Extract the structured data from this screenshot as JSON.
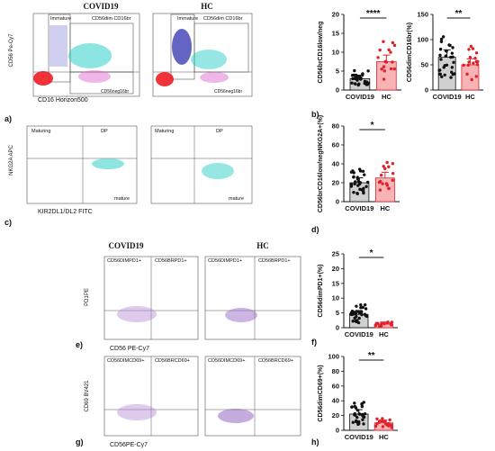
{
  "panel_a": {
    "letter": "a)",
    "col_titles": [
      "COVID19",
      "HC"
    ],
    "y_axis": "CD56 Pe-Cy7",
    "x_axis": "CD16 Horizon500",
    "gates": {
      "immature": "Immature",
      "dim": "CD56dim CD16br",
      "neg": "CD56neg16br"
    }
  },
  "panel_b": {
    "letter": "b)",
    "charts": [
      {
        "type": "bar",
        "ylabel": "CD56brCD16low/neg",
        "categories": [
          "COVID19",
          "HC"
        ],
        "values": [
          3,
          7.5
        ],
        "yticks": [
          0,
          5,
          10,
          15,
          20
        ],
        "ylim": [
          0,
          20
        ],
        "sig": "****"
      },
      {
        "type": "bar",
        "ylabel": "CD56dimCD16br(%)",
        "categories": [
          "COVID19",
          "HC"
        ],
        "values": [
          65,
          50
        ],
        "yticks": [
          0,
          50,
          100,
          150
        ],
        "ylim": [
          0,
          150
        ],
        "sig": "**"
      }
    ]
  },
  "panel_c": {
    "letter": "c)",
    "y_axis": "NKG2A APC",
    "x_axis": "KIR2DL1/DL2 FITC",
    "gates": {
      "maturing": "Maturing",
      "dp": "DP",
      "mature": "mature"
    }
  },
  "panel_d": {
    "letter": "d)",
    "chart": {
      "type": "bar",
      "ylabel": "CD56brCD16low/negNKG2A+(%)",
      "categories": [
        "COVID19",
        "HC"
      ],
      "values": [
        20,
        25
      ],
      "yticks": [
        0,
        20,
        40,
        60,
        80
      ],
      "ylim": [
        0,
        80
      ],
      "sig": "*"
    }
  },
  "panel_e": {
    "letter": "e)",
    "col_titles": [
      "COVID19",
      "HC"
    ],
    "y_axis": "PD1PE",
    "x_axis": "CD56 PE-Cy7",
    "gates": {
      "left": "CD56DIMPD1+",
      "right": "CD56BRPD1+"
    }
  },
  "panel_f": {
    "letter": "f)",
    "chart": {
      "type": "bar",
      "ylabel": "CD56dimPD1+(%)",
      "categories": [
        "COVID19",
        "HC"
      ],
      "values": [
        4.5,
        1.2
      ],
      "yticks": [
        0,
        5,
        10,
        15,
        20,
        25
      ],
      "ylim": [
        0,
        25
      ],
      "sig": "*"
    }
  },
  "panel_g": {
    "letter": "g)",
    "y_axis": "CD69 BV421",
    "x_axis": "CD56PE-Cy7",
    "gates": {
      "left": "CD56DIMCD69+",
      "right": "CD56BRCD69+"
    }
  },
  "panel_h": {
    "letter": "h)",
    "chart": {
      "type": "bar",
      "ylabel": "CD56dimCD69+(%)",
      "categories": [
        "COVID19",
        "HC"
      ],
      "values": [
        22,
        10
      ],
      "yticks": [
        0,
        20,
        40,
        60,
        80,
        100
      ],
      "ylim": [
        0,
        100
      ],
      "sig": "**"
    }
  },
  "colors": {
    "covid_bar": "#d0d0d0",
    "hc_bar": "#f8b4b4",
    "hc_dot": "#e0202a",
    "sig_line": "#c01010"
  }
}
